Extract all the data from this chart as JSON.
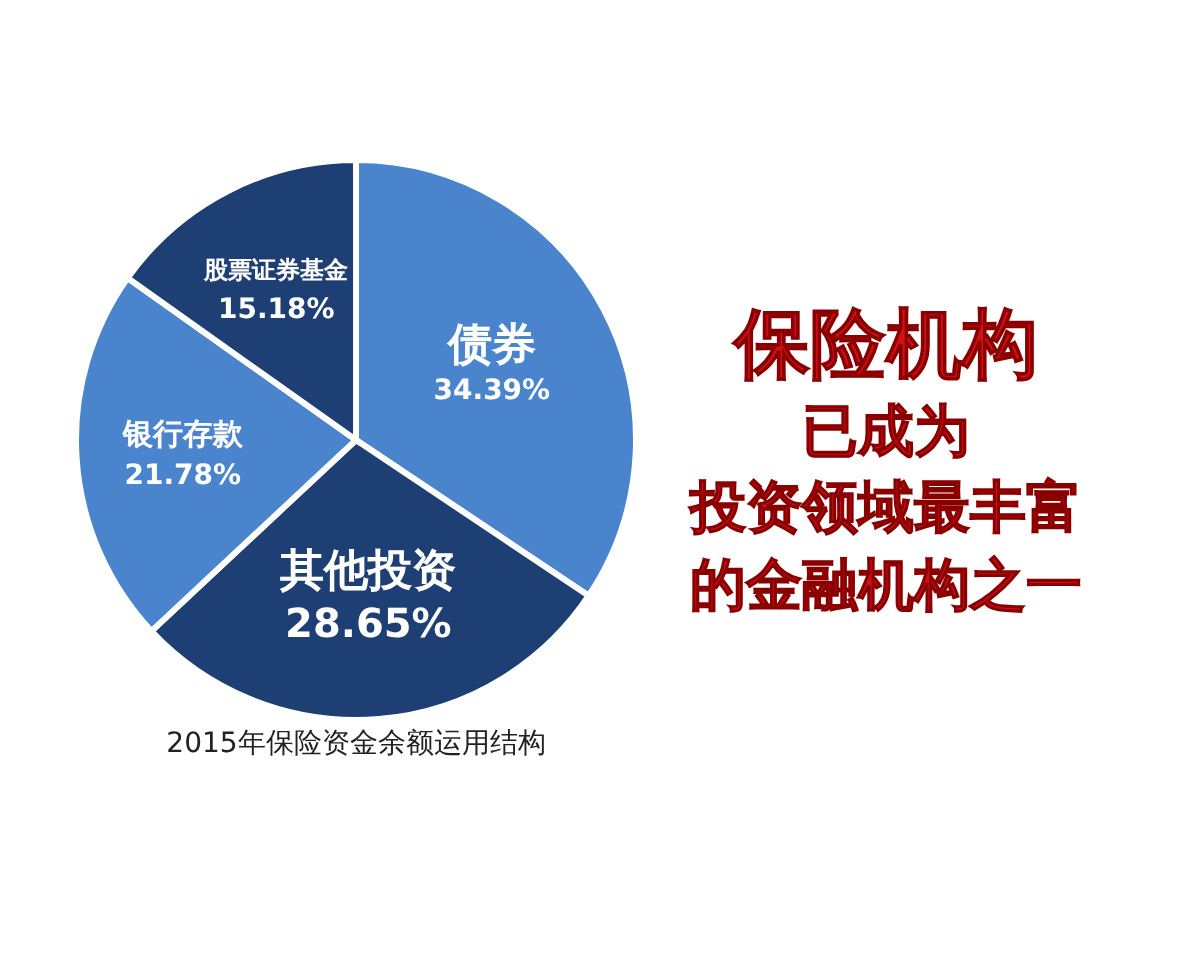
{
  "chart_data": {
    "type": "pie",
    "title": "2015年保险资金余额运用结构",
    "categories": [
      "债券",
      "其他投资",
      "银行存款",
      "股票证券基金"
    ],
    "values": [
      34.39,
      28.65,
      21.78,
      15.18
    ],
    "value_labels": [
      "34.39%",
      "28.65%",
      "21.78%",
      "15.18%"
    ],
    "colors": [
      "#4a84cc",
      "#1e3f73",
      "#4a84cc",
      "#1e3f73"
    ],
    "annotations": [
      "保险机构",
      "已成为",
      "投资领域最丰富",
      "的金融机构之一"
    ],
    "legend": false
  }
}
